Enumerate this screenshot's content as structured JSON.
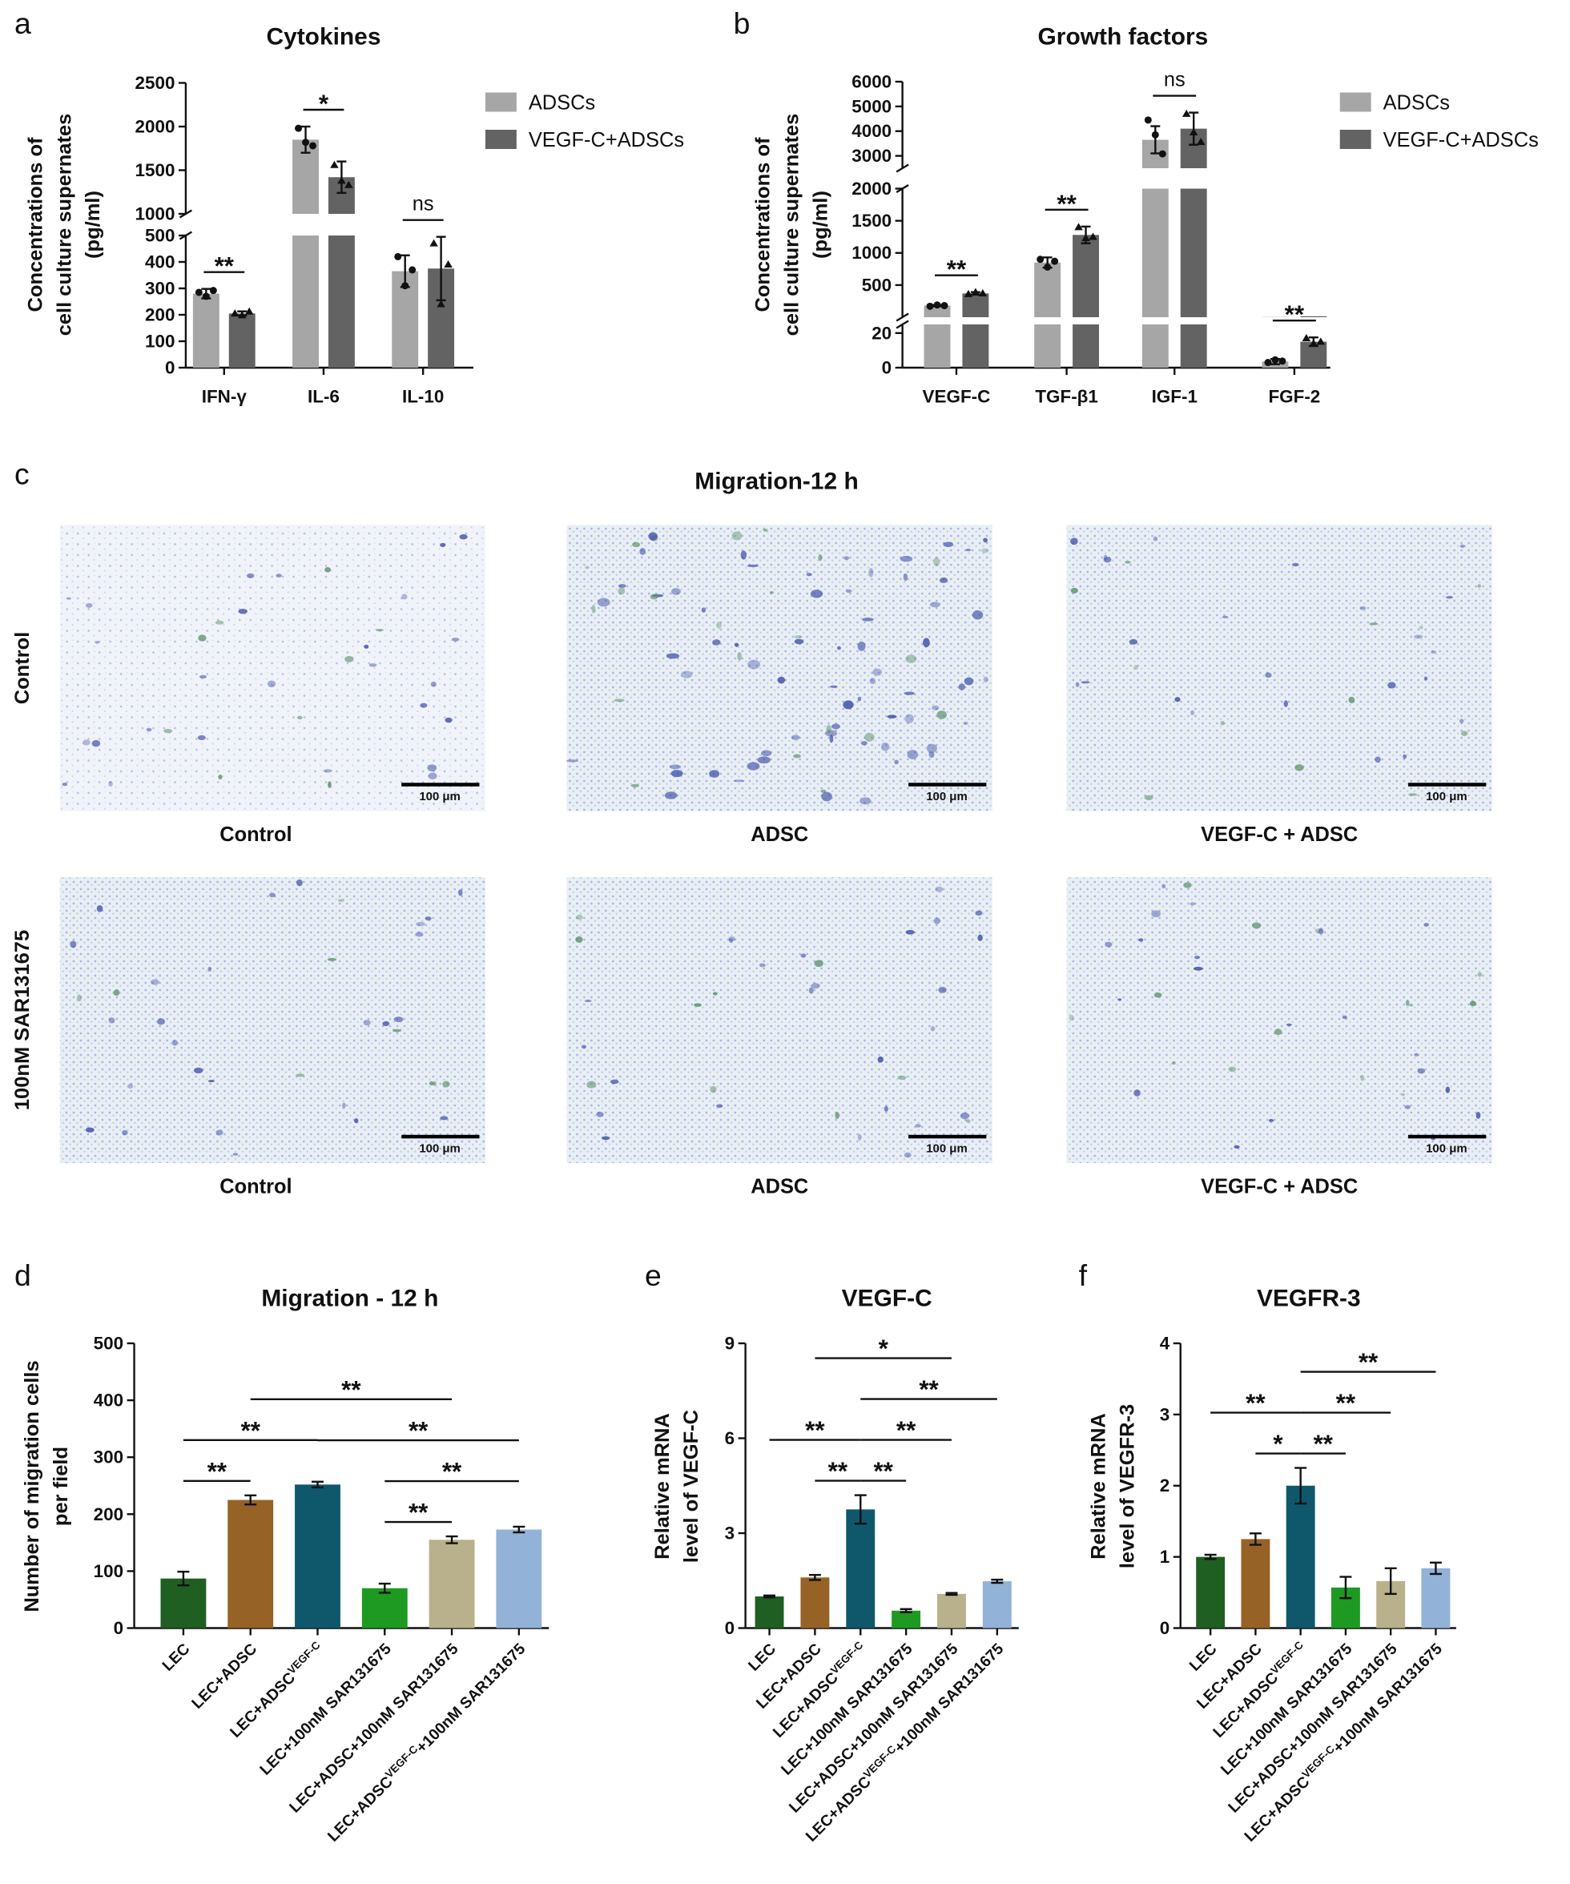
{
  "chart_data": [
    {
      "type": "bar",
      "panel": "a",
      "title": "Cytokines",
      "ylabel": [
        "Concentrations of",
        "cell culture supernates",
        "(pg/ml)"
      ],
      "categories": [
        "IFN-γ",
        "IL-6",
        "IL-10"
      ],
      "series": [
        {
          "name": "ADSCs",
          "color": "#a6a6a6",
          "values": [
            280,
            1850,
            365
          ],
          "errors": [
            18,
            150,
            60
          ],
          "points": [
            [
              285,
              270,
              292
            ],
            [
              1980,
              1820,
              1780
            ],
            [
              420,
              310,
              370
            ]
          ]
        },
        {
          "name": "VEGF-C+ADSCs",
          "color": "#636363",
          "values": [
            205,
            1420,
            375
          ],
          "errors": [
            8,
            180,
            120
          ],
          "points": [
            [
              205,
              198,
              212
            ],
            [
              1560,
              1380,
              1330
            ],
            [
              470,
              240,
              390
            ]
          ]
        }
      ],
      "y_segments": [
        {
          "ylim": [
            0,
            500
          ],
          "yticks": [
            0,
            100,
            200,
            300,
            400,
            500
          ]
        },
        {
          "ylim": [
            1000,
            2500
          ],
          "yticks": [
            1000,
            1500,
            2000,
            2500
          ]
        }
      ],
      "significance": [
        {
          "category": 0,
          "label": "**"
        },
        {
          "category": 1,
          "label": "*"
        },
        {
          "category": 2,
          "label": "ns"
        }
      ],
      "legend": "right"
    },
    {
      "type": "bar",
      "panel": "b",
      "title": "Growth factors",
      "ylabel": [
        "Concentrations of",
        "cell culture supernates",
        "(pg/ml)"
      ],
      "categories": [
        "VEGF-C",
        "TGF-β1",
        "IGF-1",
        "FGF-2"
      ],
      "series": [
        {
          "name": "ADSCs",
          "color": "#a6a6a6",
          "values": [
            180,
            850,
            3650,
            3.5
          ],
          "errors": [
            10,
            80,
            550,
            1.5
          ],
          "points": [
            [
              170,
              190,
              180
            ],
            [
              900,
              780,
              870
            ],
            [
              4450,
              3850,
              3080
            ],
            [
              3,
              4.5,
              3.8
            ]
          ]
        },
        {
          "name": "VEGF-C+ADSCs",
          "color": "#636363",
          "values": [
            370,
            1280,
            4100,
            15
          ],
          "errors": [
            20,
            130,
            650,
            2.5
          ],
          "points": [
            [
              360,
              390,
              370
            ],
            [
              1400,
              1230,
              1250
            ],
            [
              4700,
              3950,
              3560
            ],
            [
              17,
              14,
              15
            ]
          ]
        }
      ],
      "y_segments": [
        {
          "ylim": [
            0,
            25
          ],
          "yticks": [
            0,
            20
          ]
        },
        {
          "ylim": [
            0,
            2000
          ],
          "yticks": [
            500,
            1000,
            1500,
            2000
          ]
        },
        {
          "ylim": [
            2500,
            6000
          ],
          "yticks": [
            3000,
            4000,
            5000,
            6000
          ]
        }
      ],
      "significance": [
        {
          "category": 0,
          "label": "**"
        },
        {
          "category": 1,
          "label": "**"
        },
        {
          "category": 2,
          "label": "ns"
        },
        {
          "category": 3,
          "label": "**"
        }
      ],
      "legend": "right"
    },
    {
      "type": "bar",
      "panel": "d",
      "title": "Migration - 12 h",
      "ylabel": [
        "Number of migration cells",
        "per field"
      ],
      "categories": [
        [
          "LEC"
        ],
        [
          "LEC+ADSC"
        ],
        [
          "LEC+ADSC",
          "VEGF-C"
        ],
        [
          "LEC+100nM SAR131675"
        ],
        [
          "LEC+ADSC+100nM SAR131675"
        ],
        [
          "LEC+ADSC",
          "VEGF-C",
          "+100nM SAR131675"
        ]
      ],
      "values": [
        87,
        225,
        252,
        70,
        155,
        173
      ],
      "errors": [
        12,
        8,
        5,
        8,
        6,
        5
      ],
      "colors": [
        "#1f5f22",
        "#976226",
        "#0f586b",
        "#1e9a22",
        "#b9b18b",
        "#92b2d8"
      ],
      "ylim": [
        0,
        500
      ],
      "yticks": [
        0,
        100,
        200,
        300,
        400,
        500
      ],
      "comparisons": [
        {
          "from": 0,
          "to": 1,
          "label": "**"
        },
        {
          "from": 3,
          "to": 4,
          "label": "**"
        },
        {
          "from": 0,
          "to": 2,
          "label": "**"
        },
        {
          "from": 3,
          "to": 5,
          "label": "**"
        },
        {
          "from": 2,
          "to": 5,
          "label": "**"
        },
        {
          "from": 1,
          "to": 4,
          "label": "**"
        }
      ]
    },
    {
      "type": "bar",
      "panel": "e",
      "title": "VEGF-C",
      "ylabel": [
        "Relative mRNA",
        "level of VEGF-C"
      ],
      "categories": [
        [
          "LEC"
        ],
        [
          "LEC+ADSC"
        ],
        [
          "LEC+ADSC",
          "VEGF-C"
        ],
        [
          "LEC+100nM SAR131675"
        ],
        [
          "LEC+ADSC+100nM SAR131675"
        ],
        [
          "LEC+ADSC",
          "VEGF-C",
          "+100nM SAR131675"
        ]
      ],
      "values": [
        1.0,
        1.6,
        3.75,
        0.55,
        1.08,
        1.48
      ],
      "errors": [
        0.03,
        0.08,
        0.45,
        0.05,
        0.03,
        0.05
      ],
      "colors": [
        "#1f5f22",
        "#976226",
        "#0f586b",
        "#1e9a22",
        "#b9b18b",
        "#92b2d8"
      ],
      "ylim": [
        0,
        9
      ],
      "yticks": [
        0,
        3,
        6,
        9
      ],
      "comparisons": [
        {
          "from": 1,
          "to": 2,
          "label": "**"
        },
        {
          "from": 2,
          "to": 3,
          "label": "**"
        },
        {
          "from": 0,
          "to": 2,
          "label": "**"
        },
        {
          "from": 2,
          "to": 4,
          "label": "**"
        },
        {
          "from": 2,
          "to": 5,
          "label": "**"
        },
        {
          "from": 1,
          "to": 4,
          "label": "*"
        }
      ]
    },
    {
      "type": "bar",
      "panel": "f",
      "title": "VEGFR-3",
      "ylabel": [
        "Relative mRNA",
        "level of VEGFR-3"
      ],
      "categories": [
        [
          "LEC"
        ],
        [
          "LEC+ADSC"
        ],
        [
          "LEC+ADSC",
          "VEGF-C"
        ],
        [
          "LEC+100nM SAR131675"
        ],
        [
          "LEC+ADSC+100nM SAR131675"
        ],
        [
          "LEC+ADSC",
          "VEGF-C",
          "+100nM SAR131675"
        ]
      ],
      "values": [
        1.0,
        1.25,
        2.0,
        0.57,
        0.66,
        0.84
      ],
      "errors": [
        0.03,
        0.08,
        0.25,
        0.15,
        0.18,
        0.08
      ],
      "colors": [
        "#1f5f22",
        "#976226",
        "#0f586b",
        "#1e9a22",
        "#b9b18b",
        "#92b2d8"
      ],
      "ylim": [
        0,
        4
      ],
      "yticks": [
        0,
        1,
        2,
        3,
        4
      ],
      "comparisons": [
        {
          "from": 1,
          "to": 2,
          "label": "*"
        },
        {
          "from": 2,
          "to": 3,
          "label": "**"
        },
        {
          "from": 0,
          "to": 2,
          "label": "**"
        },
        {
          "from": 2,
          "to": 4,
          "label": "**"
        },
        {
          "from": 2,
          "to": 5,
          "label": "**"
        }
      ]
    }
  ],
  "image_grid": {
    "panel": "c",
    "title": "Migration-12 h",
    "row_labels": [
      "Control",
      "100nM SAR131675"
    ],
    "column_labels": [
      "Control",
      "ADSC",
      "VEGF-C + ADSC"
    ],
    "scale_bar": "100 μm"
  }
}
